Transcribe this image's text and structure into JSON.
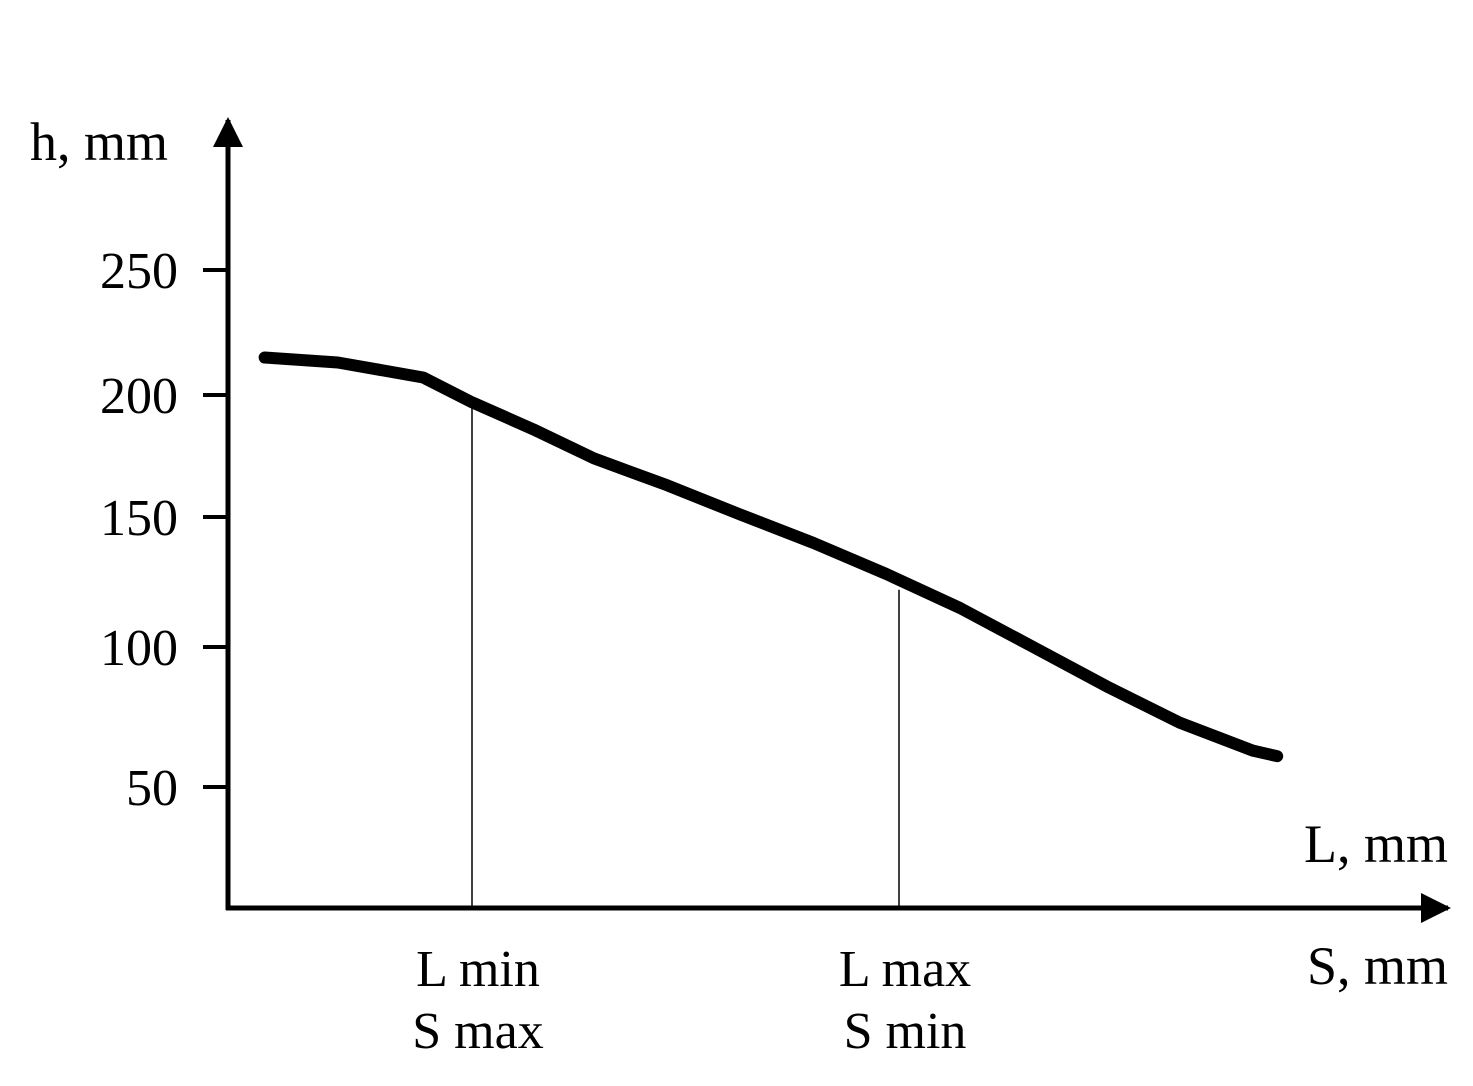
{
  "chart_data": {
    "type": "line",
    "ylabel": "h, mm",
    "xlabel_top": "L, mm",
    "xlabel_bottom": "S, mm",
    "yticks": [
      250,
      200,
      150,
      100,
      50
    ],
    "ylim": [
      0,
      300
    ],
    "xlim": [
      0,
      1
    ],
    "grid": false,
    "series": [
      {
        "x": [
          0.03,
          0.09,
          0.16,
          0.2,
          0.25,
          0.3,
          0.36,
          0.42,
          0.48,
          0.54,
          0.6,
          0.66,
          0.72,
          0.78,
          0.84,
          0.86
        ],
        "values": [
          215,
          213,
          207,
          197,
          186,
          174,
          163,
          151,
          140,
          128,
          115,
          100,
          86,
          73,
          63,
          61
        ]
      }
    ],
    "markers": [
      {
        "x": 0.2,
        "y": 197,
        "label_top": "L min",
        "label_bottom": "S max"
      },
      {
        "x": 0.55,
        "y": 122,
        "label_top": "L max",
        "label_bottom": "S min"
      }
    ]
  }
}
